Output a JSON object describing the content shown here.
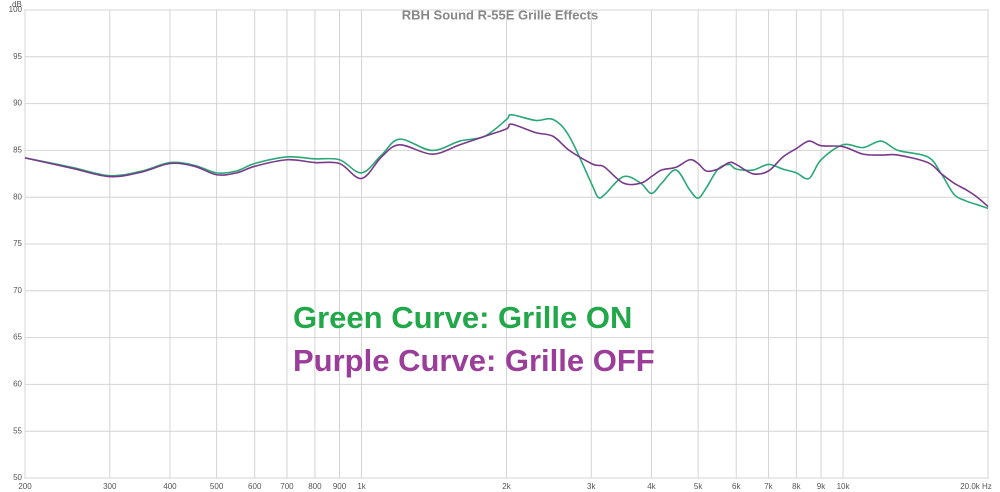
{
  "chart_data": {
    "type": "line",
    "title": "RBH Sound R-55E Grille Effects",
    "y_label": "dB",
    "xscale": "log",
    "grid": true,
    "xlim": [
      200,
      20000
    ],
    "ylim": [
      50,
      100
    ],
    "yticks": [
      50,
      55,
      60,
      65,
      70,
      75,
      80,
      85,
      90,
      95,
      100
    ],
    "xticks": [
      200,
      300,
      400,
      500,
      600,
      700,
      800,
      900,
      {
        "value": 1000,
        "label": "1k"
      },
      {
        "value": 2000,
        "label": "2k"
      },
      {
        "value": 3000,
        "label": "3k"
      },
      {
        "value": 4000,
        "label": "4k"
      },
      {
        "value": 5000,
        "label": "5k"
      },
      {
        "value": 6000,
        "label": "6k"
      },
      {
        "value": 7000,
        "label": "7k"
      },
      {
        "value": 8000,
        "label": "8k"
      },
      {
        "value": 9000,
        "label": "9k"
      },
      {
        "value": 10000,
        "label": "10k"
      },
      {
        "value": 20000,
        "label": "20.0k Hz"
      }
    ],
    "x": [
      200,
      250,
      300,
      350,
      400,
      450,
      500,
      550,
      600,
      700,
      800,
      900,
      1000,
      1100,
      1200,
      1400,
      1600,
      1800,
      2000,
      2050,
      2300,
      2500,
      2700,
      3000,
      3100,
      3200,
      3500,
      3800,
      4000,
      4200,
      4500,
      4800,
      5000,
      5200,
      5500,
      5800,
      6000,
      6500,
      7000,
      7500,
      8000,
      8500,
      9000,
      10000,
      11000,
      12000,
      13000,
      15000,
      16000,
      17000,
      18000,
      19000,
      20000
    ],
    "series": [
      {
        "name": "Grille ON",
        "color": "#2aa877",
        "values": [
          84.2,
          83.2,
          82.3,
          82.8,
          83.7,
          83.4,
          82.6,
          82.8,
          83.6,
          84.3,
          84.1,
          84.0,
          82.6,
          84.5,
          86.2,
          85.0,
          86.0,
          86.5,
          88.3,
          88.8,
          88.2,
          88.3,
          86.5,
          81.5,
          80.0,
          80.3,
          82.2,
          81.5,
          80.4,
          81.5,
          82.9,
          80.8,
          79.9,
          81.0,
          83.0,
          83.5,
          83.0,
          82.9,
          83.5,
          83.0,
          82.6,
          82.0,
          84.0,
          85.6,
          85.3,
          86.0,
          85.0,
          84.3,
          82.5,
          80.3,
          79.6,
          79.2,
          78.8
        ]
      },
      {
        "name": "Grille OFF",
        "color": "#7a3a8a",
        "values": [
          84.2,
          83.1,
          82.2,
          82.7,
          83.6,
          83.3,
          82.4,
          82.6,
          83.3,
          84.0,
          83.7,
          83.6,
          82.0,
          84.3,
          85.6,
          84.6,
          85.6,
          86.5,
          87.3,
          87.8,
          86.9,
          86.5,
          85.0,
          83.6,
          83.4,
          83.2,
          81.5,
          81.5,
          82.2,
          82.9,
          83.2,
          84.0,
          83.6,
          82.8,
          83.0,
          83.7,
          83.5,
          82.5,
          82.8,
          84.3,
          85.2,
          86.0,
          85.5,
          85.4,
          84.6,
          84.5,
          84.5,
          83.7,
          82.5,
          81.5,
          80.8,
          80.0,
          79.0
        ]
      }
    ],
    "annotations": [
      {
        "text": "Green Curve: Grille ON",
        "color": "#22a84a"
      },
      {
        "text": "Purple Curve: Grille OFF",
        "color": "#9a3e9a"
      }
    ]
  }
}
